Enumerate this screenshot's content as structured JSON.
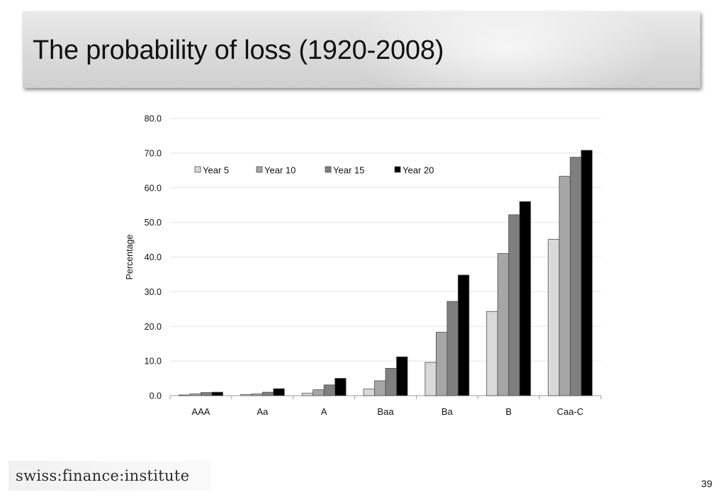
{
  "slide": {
    "title": "The probability of loss (1920-2008)",
    "logo_text": "swiss:finance:institute",
    "page_number": "39"
  },
  "chart_data": {
    "type": "bar",
    "title": "",
    "xlabel": "",
    "ylabel": "Percentage",
    "ylim": [
      0,
      80
    ],
    "yticks": [
      "0.0",
      "10.0",
      "20.0",
      "30.0",
      "40.0",
      "50.0",
      "60.0",
      "70.0",
      "80.0"
    ],
    "grid": true,
    "legend_position": "top-left",
    "categories": [
      "AAA",
      "Aa",
      "A",
      "Baa",
      "Ba",
      "B",
      "Caa-C"
    ],
    "series": [
      {
        "name": "Year 5",
        "color": "#d9d9d9",
        "values": [
          0.2,
          0.3,
          0.7,
          1.9,
          9.6,
          24.3,
          45.1
        ]
      },
      {
        "name": "Year 10",
        "color": "#a6a6a6",
        "values": [
          0.5,
          0.5,
          1.7,
          4.3,
          18.3,
          41.0,
          63.3
        ]
      },
      {
        "name": "Year 15",
        "color": "#7f7f7f",
        "values": [
          0.9,
          1.0,
          3.1,
          7.9,
          27.2,
          52.2,
          68.8
        ]
      },
      {
        "name": "Year 20",
        "color": "#000000",
        "values": [
          1.0,
          2.0,
          5.0,
          11.2,
          34.8,
          56.0,
          70.8
        ]
      }
    ]
  }
}
